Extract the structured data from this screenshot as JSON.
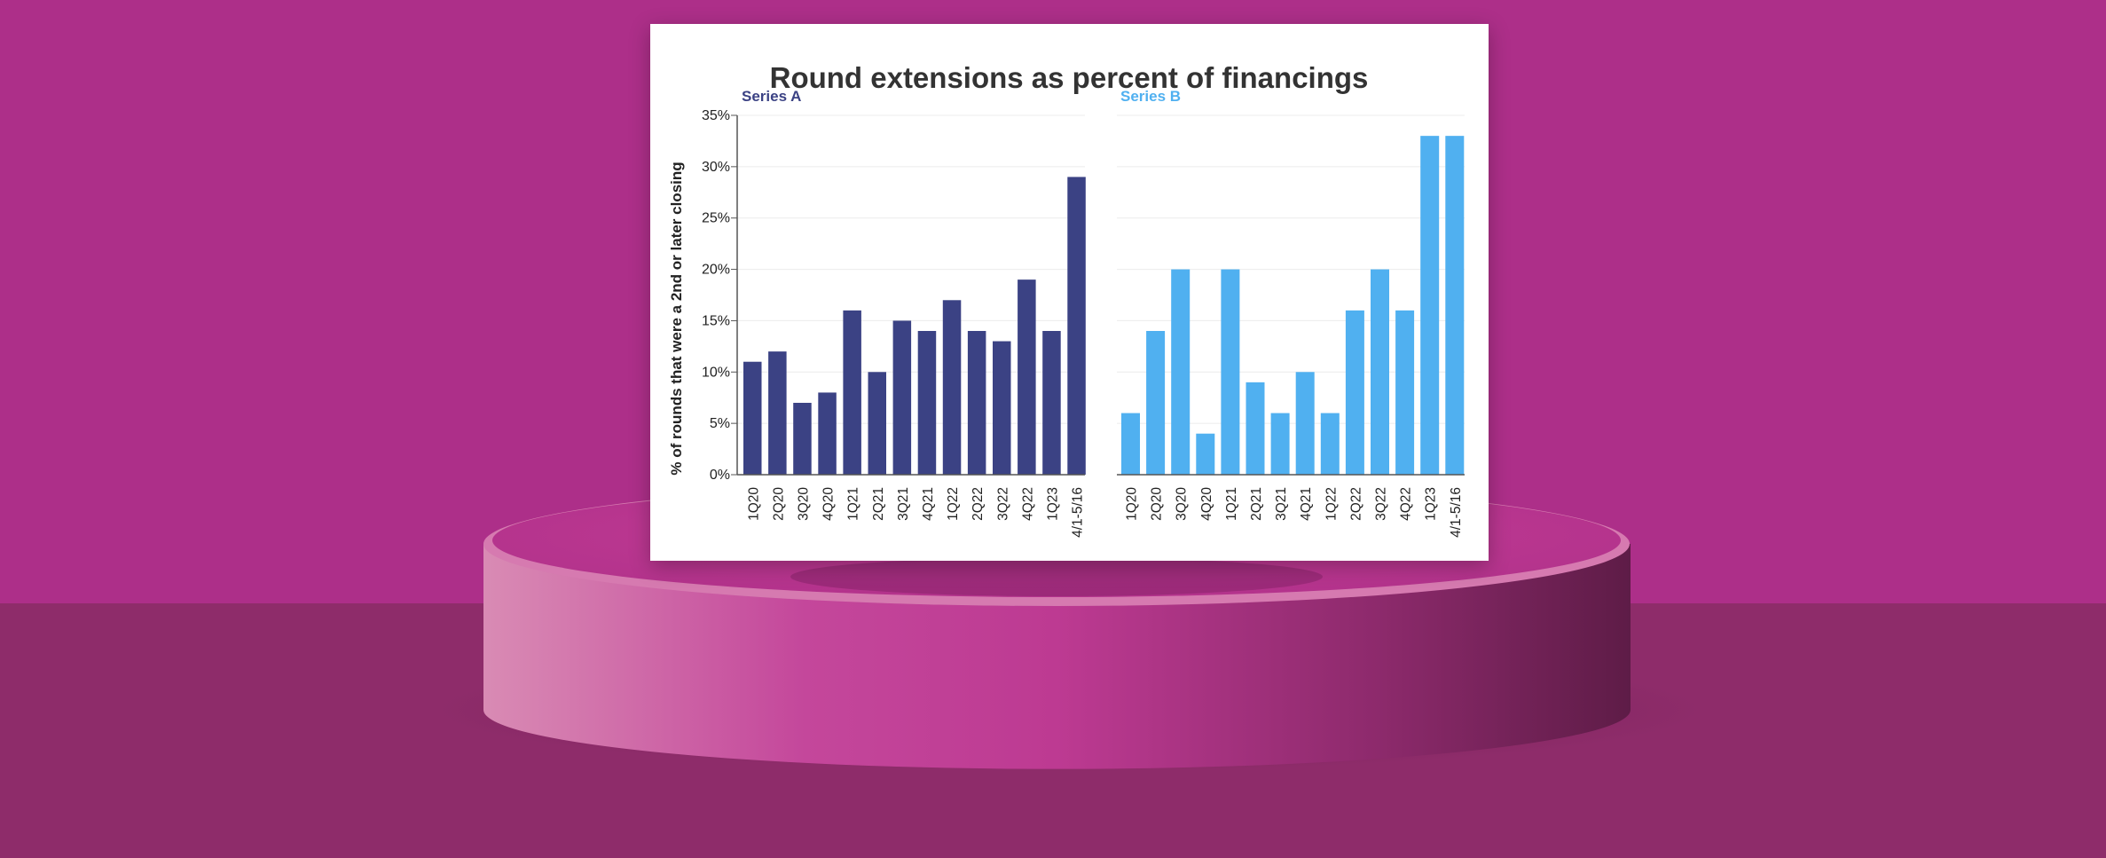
{
  "colors": {
    "wall": "#ad2f89",
    "floor": "#8e2c6a",
    "series_a": "#3b4284",
    "series_b": "#50b0f0"
  },
  "chart_data": {
    "type": "bar",
    "title": "Round extensions as percent of financings",
    "ylabel": "% of rounds that were a 2nd or later closing",
    "ylim": [
      0,
      35
    ],
    "yticks": [
      "0%",
      "5%",
      "10%",
      "15%",
      "20%",
      "25%",
      "30%",
      "35%"
    ],
    "grid": true,
    "categories": [
      "1Q20",
      "2Q20",
      "3Q20",
      "4Q20",
      "1Q21",
      "2Q21",
      "3Q21",
      "4Q21",
      "1Q22",
      "2Q22",
      "3Q22",
      "4Q22",
      "1Q23",
      "4/1-5/16"
    ],
    "series": [
      {
        "name": "Series A",
        "values": [
          11,
          12,
          7,
          8,
          16,
          10,
          15,
          14,
          17,
          14,
          13,
          19,
          14,
          29
        ]
      },
      {
        "name": "Series B",
        "values": [
          6,
          14,
          20,
          4,
          20,
          9,
          6,
          10,
          6,
          16,
          20,
          16,
          33,
          33
        ]
      }
    ]
  }
}
